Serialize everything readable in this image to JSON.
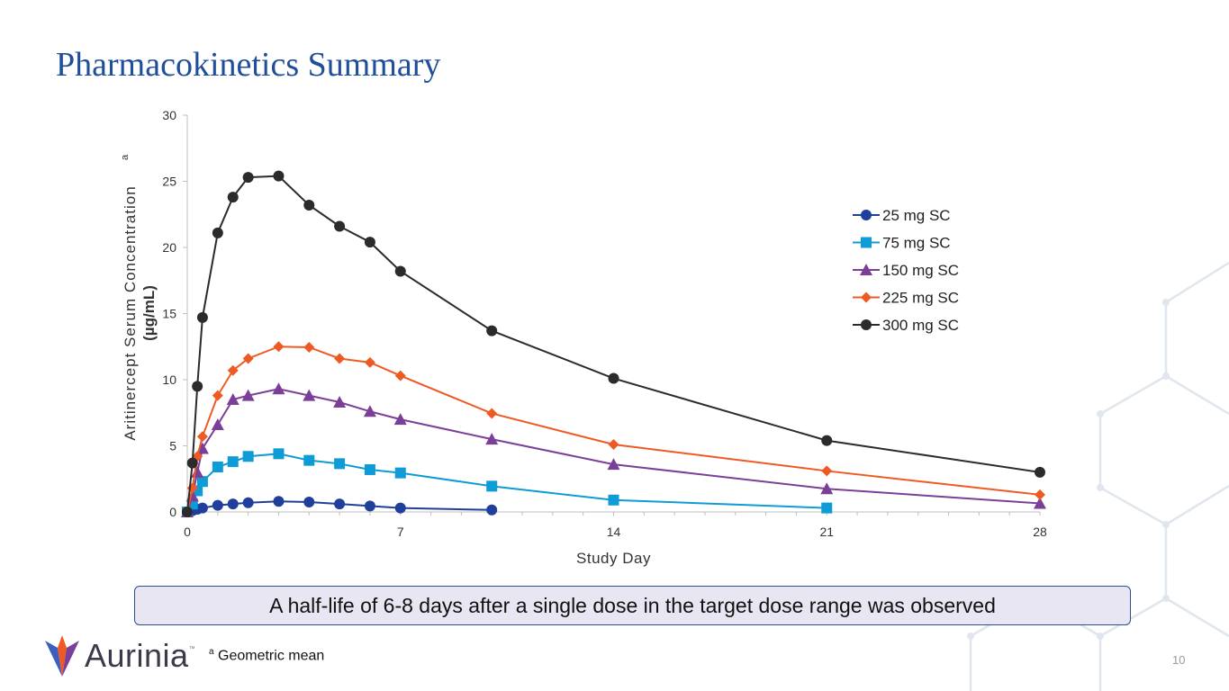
{
  "title": "Pharmacokinetics Summary",
  "callout": "A half-life of 6-8 days after a single dose in the target dose range was observed",
  "footnote_marker": "a",
  "footnote": "Geometric mean",
  "page_number": "10",
  "logo": {
    "text": "Aurinia",
    "tm": "™"
  },
  "chart_data": {
    "type": "line",
    "xlabel": "Study Day",
    "ylabel_line1": "Aritinercept Serum Concentration",
    "ylabel_sup": "a",
    "ylabel_line2": "(µg/mL)",
    "xlim": [
      0,
      28
    ],
    "ylim": [
      0,
      30
    ],
    "xticks": [
      0,
      7,
      14,
      21,
      28
    ],
    "yticks": [
      0,
      5,
      10,
      15,
      20,
      25,
      30
    ],
    "grid": false,
    "legend_position": "right",
    "series": [
      {
        "name": "25 mg SC",
        "color": "#1f3f9a",
        "marker": "circle",
        "x": [
          0,
          0.17,
          0.33,
          0.5,
          1,
          1.5,
          2,
          3,
          4,
          5,
          6,
          7,
          10
        ],
        "y": [
          0,
          0.1,
          0.2,
          0.3,
          0.5,
          0.6,
          0.7,
          0.8,
          0.75,
          0.6,
          0.45,
          0.3,
          0.15
        ]
      },
      {
        "name": "75 mg SC",
        "color": "#0e9bd6",
        "marker": "square",
        "x": [
          0,
          0.17,
          0.33,
          0.5,
          1,
          1.5,
          2,
          3,
          4,
          5,
          6,
          7,
          10,
          14,
          21
        ],
        "y": [
          0,
          0.6,
          1.6,
          2.3,
          3.4,
          3.8,
          4.2,
          4.4,
          3.9,
          3.65,
          3.2,
          2.95,
          1.95,
          0.9,
          0.3
        ]
      },
      {
        "name": "150 mg SC",
        "color": "#7b3f98",
        "marker": "triangle",
        "x": [
          0,
          0.17,
          0.33,
          0.5,
          1,
          1.5,
          2,
          3,
          4,
          5,
          6,
          7,
          10,
          14,
          21,
          28
        ],
        "y": [
          0,
          1.2,
          3.0,
          4.8,
          6.6,
          8.5,
          8.8,
          9.3,
          8.8,
          8.3,
          7.6,
          7.0,
          5.5,
          3.6,
          1.75,
          0.65
        ]
      },
      {
        "name": "225 mg SC",
        "color": "#ee5a24",
        "marker": "diamond",
        "x": [
          0,
          0.17,
          0.33,
          0.5,
          1,
          1.5,
          2,
          3,
          4,
          5,
          6,
          7,
          10,
          14,
          21,
          28
        ],
        "y": [
          0,
          1.8,
          4.2,
          5.7,
          8.8,
          10.7,
          11.6,
          12.5,
          12.45,
          11.6,
          11.3,
          10.3,
          7.45,
          5.1,
          3.1,
          1.3
        ]
      },
      {
        "name": "300 mg SC",
        "color": "#2b2b2b",
        "marker": "circle",
        "x": [
          0,
          0.17,
          0.33,
          0.5,
          1,
          1.5,
          2,
          3,
          4,
          5,
          6,
          7,
          10,
          14,
          21,
          28
        ],
        "y": [
          0,
          3.7,
          9.5,
          14.7,
          21.1,
          23.8,
          25.3,
          25.4,
          23.2,
          21.6,
          20.4,
          18.2,
          13.7,
          10.1,
          5.4,
          3.0
        ]
      }
    ]
  }
}
